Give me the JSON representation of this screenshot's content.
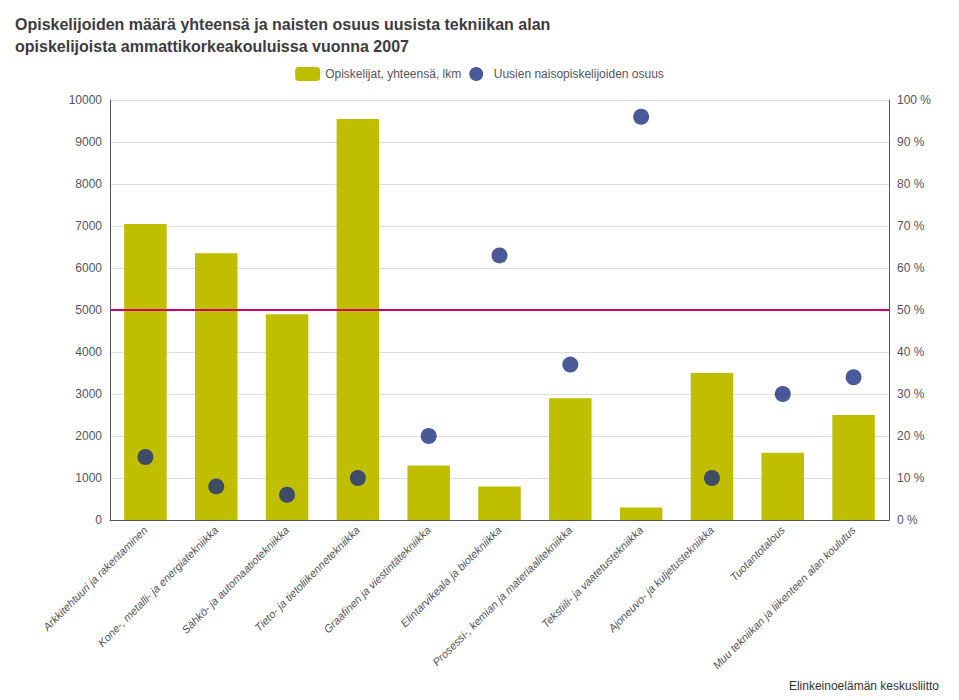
{
  "chart_data": {
    "type": "bar",
    "title": "Opiskelijoiden määrä yhteensä ja naisten osuus uusista tekniikan alan\nopiskelijoista ammattikorkeakouluissa vuonna 2007",
    "categories": [
      "Arkkitehtuuri ja rakentaminen",
      "Kone-, metalli- ja energiatekniikka",
      "Sähkö- ja automaatiotekniikka",
      "Tieto- ja tietoliikennetekniikka",
      "Graafinen ja viestintätekniikka",
      "Elintarvikeala ja biotekniikka",
      "Prosessi-, kemian ja materiaalitekniikka",
      "Tekstiili- ja vaatetustekniikka",
      "Ajoneuvo- ja kuljetustekniikka",
      "Tuotantotalous",
      "Muu tekniikan ja liikenteen alan koulutus"
    ],
    "series": [
      {
        "name": "Opiskelijat, yhteensä, lkm",
        "type": "bar",
        "color": "#BFBF00",
        "values": [
          7050,
          6350,
          4900,
          9550,
          1300,
          800,
          2900,
          300,
          3500,
          1600,
          2500
        ]
      },
      {
        "name": "Uusien naisopiskelijoiden osuus",
        "type": "scatter",
        "color": "#1F3080",
        "axis": "y2",
        "values": [
          15,
          8,
          6,
          10,
          20,
          63,
          37,
          96,
          10,
          30,
          34
        ]
      }
    ],
    "ylim": [
      0,
      10000
    ],
    "yticks": [
      0,
      1000,
      2000,
      3000,
      4000,
      5000,
      6000,
      7000,
      8000,
      9000,
      10000
    ],
    "y2lim": [
      0,
      100
    ],
    "y2ticks": [
      {
        "value": 0,
        "label": "0 %"
      },
      {
        "value": 10,
        "label": "10 %"
      },
      {
        "value": 20,
        "label": "20 %"
      },
      {
        "value": 30,
        "label": "30 %"
      },
      {
        "value": 40,
        "label": "40 %"
      },
      {
        "value": 50,
        "label": "50 %"
      },
      {
        "value": 60,
        "label": "60 %"
      },
      {
        "value": 70,
        "label": "70 %"
      },
      {
        "value": 80,
        "label": "80 %"
      },
      {
        "value": 90,
        "label": "90 %"
      },
      {
        "value": 100,
        "label": "100 %"
      }
    ],
    "reference_line": {
      "y": 5000,
      "color": "#CC0066"
    },
    "annotations": [
      "Elinkeinoelämän keskusliitto"
    ],
    "grid": true,
    "legend": "top"
  }
}
